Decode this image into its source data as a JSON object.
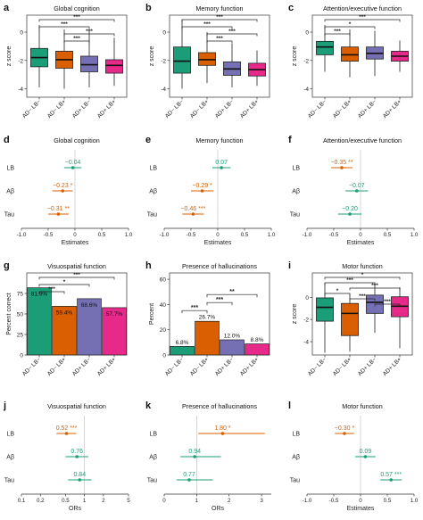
{
  "colors": {
    "AD- LB-": "#1b9e77",
    "AD- LB+": "#d95f02",
    "AD+ LB-": "#7570b3",
    "AD+ LB+": "#e7298a",
    "LB": "#1b9e77",
    "Aβ_orange": "#d95f02"
  },
  "chart_data": [
    {
      "id": "a",
      "letter": "a",
      "type": "box",
      "title": "Global cognition",
      "ylabel": "z score",
      "ylim": [
        -4.6,
        1.2
      ],
      "yticks": [
        0,
        -2,
        -4
      ],
      "categories": [
        "AD− LB−",
        "AD− LB+",
        "AD+ LB−",
        "AD+ LB+"
      ],
      "boxes": [
        {
          "min": -3.9,
          "q1": -2.45,
          "median": -1.8,
          "q3": -1.15,
          "max": 0.5
        },
        {
          "min": -4.0,
          "q1": -2.55,
          "median": -1.95,
          "q3": -1.35,
          "max": 0.2
        },
        {
          "min": -3.9,
          "q1": -2.8,
          "median": -2.3,
          "q3": -1.7,
          "max": 0.1
        },
        {
          "min": -3.8,
          "q1": -2.9,
          "median": -2.35,
          "q3": -1.95,
          "max": -0.4
        }
      ],
      "brackets": [
        {
          "from": 0,
          "to": 3,
          "label": "***"
        },
        {
          "from": 0,
          "to": 2,
          "label": "***"
        },
        {
          "from": 1,
          "to": 3,
          "label": "***"
        },
        {
          "from": 1,
          "to": 2,
          "label": "***"
        }
      ]
    },
    {
      "id": "b",
      "letter": "b",
      "type": "box",
      "title": "Memory function",
      "ylabel": "z score",
      "ylim": [
        -4.6,
        1.2
      ],
      "yticks": [
        0,
        -2,
        -4
      ],
      "categories": [
        "AD− LB−",
        "AD− LB+",
        "AD+ LB−",
        "AD+ LB+"
      ],
      "boxes": [
        {
          "min": -4.0,
          "q1": -2.9,
          "median": -2.05,
          "q3": -1.05,
          "max": 0.9
        },
        {
          "min": -3.6,
          "q1": -2.35,
          "median": -1.95,
          "q3": -1.45,
          "max": 0.0
        },
        {
          "min": -3.9,
          "q1": -3.05,
          "median": -2.6,
          "q3": -2.1,
          "max": -0.8
        },
        {
          "min": -3.8,
          "q1": -3.1,
          "median": -2.65,
          "q3": -2.2,
          "max": -1.3
        }
      ],
      "brackets": [
        {
          "from": 0,
          "to": 3,
          "label": "***"
        },
        {
          "from": 0,
          "to": 2,
          "label": "***"
        },
        {
          "from": 1,
          "to": 3,
          "label": "***"
        },
        {
          "from": 1,
          "to": 2,
          "label": "***"
        }
      ]
    },
    {
      "id": "c",
      "letter": "c",
      "type": "box",
      "title": "Attention/executive function",
      "ylabel": "z score",
      "ylim": [
        -4.6,
        1.2
      ],
      "yticks": [
        0,
        -2,
        -4
      ],
      "categories": [
        "AD− LB−",
        "AD− LB+",
        "AD+ LB−",
        "AD+ LB+"
      ],
      "boxes": [
        {
          "min": -2.8,
          "q1": -1.6,
          "median": -1.05,
          "q3": -0.65,
          "max": 0.5
        },
        {
          "min": -3.2,
          "q1": -2.05,
          "median": -1.6,
          "q3": -1.05,
          "max": 0.2
        },
        {
          "min": -3.1,
          "q1": -1.9,
          "median": -1.5,
          "q3": -1.05,
          "max": 0.1
        },
        {
          "min": -2.8,
          "q1": -2.05,
          "median": -1.7,
          "q3": -1.35,
          "max": -0.6
        }
      ],
      "brackets": [
        {
          "from": 0,
          "to": 3,
          "label": "***"
        },
        {
          "from": 0,
          "to": 2,
          "label": "*"
        },
        {
          "from": 0,
          "to": 1,
          "label": "***"
        }
      ]
    },
    {
      "id": "d",
      "letter": "d",
      "type": "forest",
      "title": "Global cognition",
      "xlabel": "Estimates",
      "xlim": [
        -1.0,
        1.0
      ],
      "xticks": [
        "-1.0",
        "-0.5",
        "0",
        "0.5",
        "1.0"
      ],
      "xtick_values": [
        -1.0,
        -0.5,
        0,
        0.5,
        1.0
      ],
      "ref": 0,
      "log": false,
      "rows": [
        {
          "label": "LB",
          "est": -0.04,
          "lo": -0.2,
          "hi": 0.12,
          "text": "−0.04",
          "color": "#1b9e77"
        },
        {
          "label": "Aβ",
          "est": -0.23,
          "lo": -0.42,
          "hi": -0.04,
          "text": "−0.23 *",
          "color": "#d95f02"
        },
        {
          "label": "Tau",
          "est": -0.31,
          "lo": -0.5,
          "hi": -0.12,
          "text": "−0.31 **",
          "color": "#d95f02"
        }
      ]
    },
    {
      "id": "e",
      "letter": "e",
      "type": "forest",
      "title": "Memory function",
      "xlabel": "Estimates",
      "xlim": [
        -1.0,
        1.0
      ],
      "xticks": [
        "-1.0",
        "-0.5",
        "0",
        "0.5",
        "1.0"
      ],
      "xtick_values": [
        -1.0,
        -0.5,
        0,
        0.5,
        1.0
      ],
      "ref": 0,
      "log": false,
      "rows": [
        {
          "label": "LB",
          "est": 0.07,
          "lo": -0.1,
          "hi": 0.24,
          "text": "0.07",
          "color": "#1b9e77"
        },
        {
          "label": "Aβ",
          "est": -0.29,
          "lo": -0.5,
          "hi": -0.08,
          "text": "−0.29 *",
          "color": "#d95f02"
        },
        {
          "label": "Tau",
          "est": -0.46,
          "lo": -0.66,
          "hi": -0.26,
          "text": "−0.46 ***",
          "color": "#d95f02"
        }
      ]
    },
    {
      "id": "f",
      "letter": "f",
      "type": "forest",
      "title": "Attention/executive function",
      "xlabel": "Estimates",
      "xlim": [
        -1.0,
        1.0
      ],
      "xticks": [
        "-1.0",
        "-0.5",
        "0",
        "0.5",
        "1.0"
      ],
      "xtick_values": [
        -1.0,
        -0.5,
        0,
        0.5,
        1.0
      ],
      "ref": 0,
      "log": false,
      "rows": [
        {
          "label": "LB",
          "est": -0.35,
          "lo": -0.55,
          "hi": -0.15,
          "text": "−0.35 **",
          "color": "#d95f02"
        },
        {
          "label": "Aβ",
          "est": -0.07,
          "lo": -0.28,
          "hi": 0.14,
          "text": "−0.07",
          "color": "#1b9e77"
        },
        {
          "label": "Tau",
          "est": -0.2,
          "lo": -0.42,
          "hi": 0.02,
          "text": "−0.20",
          "color": "#1b9e77"
        }
      ]
    },
    {
      "id": "g",
      "letter": "g",
      "type": "bar",
      "title": "Visuospatial function",
      "ylabel": "Percent correct",
      "ylim": [
        0,
        100
      ],
      "yticks": [
        0,
        25,
        50,
        75
      ],
      "categories": [
        "AD− LB−",
        "AD− LB+",
        "AD+ LB−",
        "AD+ LB+"
      ],
      "values": [
        81.9,
        59.4,
        68.6,
        57.7
      ],
      "value_labels": [
        "81.9%",
        "59.4%",
        "68.6%",
        "57.7%"
      ],
      "label_inside": true,
      "brackets": [
        {
          "from": 0,
          "to": 3,
          "label": "***"
        },
        {
          "from": 0,
          "to": 2,
          "label": "*"
        },
        {
          "from": 0,
          "to": 1,
          "label": "***"
        }
      ]
    },
    {
      "id": "h",
      "letter": "h",
      "type": "bar",
      "title": "Presence of hallucinations",
      "ylabel": "Percent",
      "ylim": [
        0,
        65
      ],
      "yticks": [
        0,
        20,
        40,
        60
      ],
      "categories": [
        "AD− LB−",
        "AD− LB+",
        "AD+ LB−",
        "AD+ LB+"
      ],
      "values": [
        6.8,
        26.7,
        12.0,
        8.8
      ],
      "value_labels": [
        "6.8%",
        "26.7%",
        "12.0%",
        "8.8%"
      ],
      "label_inside": false,
      "brackets": [
        {
          "from": 0,
          "to": 1,
          "label": "***",
          "level": 0
        },
        {
          "from": 1,
          "to": 2,
          "label": "***",
          "level": 1
        },
        {
          "from": 1,
          "to": 3,
          "label": "**",
          "level": 2
        }
      ]
    },
    {
      "id": "i",
      "letter": "i",
      "type": "box",
      "title": "Motor function",
      "ylabel": "z score",
      "ylim": [
        -5.2,
        2.2
      ],
      "yticks": [
        0,
        -2,
        -4
      ],
      "categories": [
        "AD− LB−",
        "AD− LB+",
        "AD+ LB−",
        "AD+ LB+"
      ],
      "boxes": [
        {
          "min": -5.0,
          "q1": -2.15,
          "median": -0.9,
          "q3": -0.05,
          "max": 1.3
        },
        {
          "min": -4.9,
          "q1": -3.45,
          "median": -1.45,
          "q3": -0.55,
          "max": 0.3
        },
        {
          "min": -3.2,
          "q1": -1.45,
          "median": -0.45,
          "q3": 0.2,
          "max": 1.2
        },
        {
          "min": -4.6,
          "q1": -1.75,
          "median": -0.8,
          "q3": 0.05,
          "max": 0.9
        }
      ],
      "brackets": [
        {
          "from": 0,
          "to": 3,
          "label": "*"
        },
        {
          "from": 0,
          "to": 2,
          "label": "***"
        },
        {
          "from": 1,
          "to": 3,
          "label": "***"
        },
        {
          "from": 0,
          "to": 1,
          "label": "*"
        },
        {
          "from": 1,
          "to": 2,
          "label": "***"
        },
        {
          "from": 2,
          "to": 3,
          "label": "***"
        }
      ]
    },
    {
      "id": "j",
      "letter": "j",
      "type": "forest",
      "title": "Visuospatial function",
      "xlabel": "ORs",
      "xlim": [
        0.1,
        5
      ],
      "xticks": [
        "0.1",
        "0.2",
        "0.5",
        "1",
        "2",
        "5"
      ],
      "xtick_values": [
        0.1,
        0.2,
        0.5,
        1,
        2,
        5
      ],
      "ref": 1,
      "log": true,
      "rows": [
        {
          "label": "LB",
          "est": 0.52,
          "lo": 0.36,
          "hi": 0.74,
          "text": "0.52 ***",
          "color": "#d95f02"
        },
        {
          "label": "Aβ",
          "est": 0.76,
          "lo": 0.5,
          "hi": 1.15,
          "text": "0.76",
          "color": "#1b9e77"
        },
        {
          "label": "Tau",
          "est": 0.84,
          "lo": 0.55,
          "hi": 1.3,
          "text": "0.84",
          "color": "#1b9e77"
        }
      ]
    },
    {
      "id": "k",
      "letter": "k",
      "type": "forest",
      "title": "Presence of hallucinations",
      "xlabel": "ORs",
      "xlim": [
        0,
        3.3
      ],
      "xticks": [
        "0",
        "1",
        "2",
        "3"
      ],
      "xtick_values": [
        0,
        1,
        2,
        3
      ],
      "ref": 1,
      "log": false,
      "rows": [
        {
          "label": "LB",
          "est": 1.8,
          "lo": 1.05,
          "hi": 3.1,
          "text": "1.80 *",
          "color": "#d95f02"
        },
        {
          "label": "Aβ",
          "est": 0.94,
          "lo": 0.5,
          "hi": 1.75,
          "text": "0.94",
          "color": "#1b9e77"
        },
        {
          "label": "Tau",
          "est": 0.77,
          "lo": 0.38,
          "hi": 1.5,
          "text": "0.77",
          "color": "#1b9e77"
        }
      ]
    },
    {
      "id": "l",
      "letter": "l",
      "type": "forest",
      "title": "Motor function",
      "xlabel": "Estimates",
      "xlim": [
        -1.0,
        1.0
      ],
      "xticks": [
        "-1.0",
        "-0.5",
        "0",
        "0.5",
        "1.0"
      ],
      "xtick_values": [
        -1.0,
        -0.5,
        0,
        0.5,
        1.0
      ],
      "ref": 0,
      "log": false,
      "rows": [
        {
          "label": "LB",
          "est": -0.3,
          "lo": -0.48,
          "hi": -0.12,
          "text": "−0.30 *",
          "color": "#d95f02"
        },
        {
          "label": "Aβ",
          "est": 0.09,
          "lo": -0.1,
          "hi": 0.28,
          "text": "0.09",
          "color": "#1b9e77"
        },
        {
          "label": "Tau",
          "est": 0.57,
          "lo": 0.37,
          "hi": 0.77,
          "text": "0.57 ***",
          "color": "#1b9e77"
        }
      ]
    }
  ]
}
